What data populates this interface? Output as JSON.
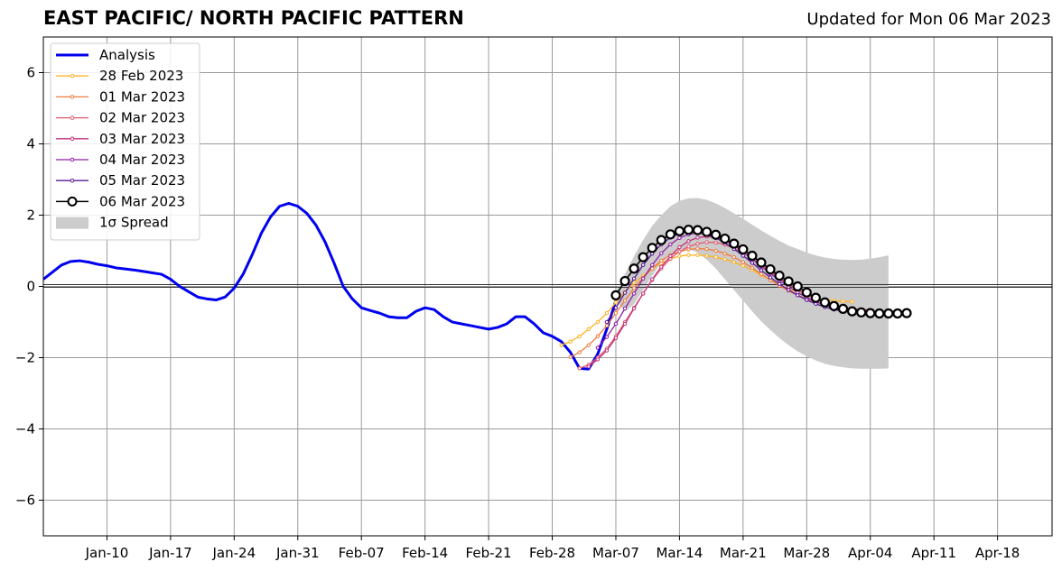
{
  "chart_data": {
    "type": "line",
    "title": "EAST PACIFIC/ NORTH PACIFIC PATTERN",
    "subtitle": "Updated for Mon 06 Mar 2023",
    "xlabel": "",
    "ylabel": "",
    "x_range": [
      "2023-01-03",
      "2023-04-24"
    ],
    "ylim": [
      -7,
      7
    ],
    "grid": true,
    "zero_line": true,
    "x_ticks": [
      "2023-01-10",
      "2023-01-17",
      "2023-01-24",
      "2023-01-31",
      "2023-02-07",
      "2023-02-14",
      "2023-02-21",
      "2023-02-28",
      "2023-03-07",
      "2023-03-14",
      "2023-03-21",
      "2023-03-28",
      "2023-04-04",
      "2023-04-11",
      "2023-04-18"
    ],
    "x_tick_labels": [
      "Jan-10",
      "Jan-17",
      "Jan-24",
      "Jan-31",
      "Feb-07",
      "Feb-14",
      "Feb-21",
      "Feb-28",
      "Mar-07",
      "Mar-14",
      "Mar-21",
      "Mar-28",
      "Apr-04",
      "Apr-11",
      "Apr-18"
    ],
    "y_ticks": [
      -6,
      -4,
      -2,
      0,
      2,
      4,
      6
    ],
    "y_tick_labels": [
      "−6",
      "−4",
      "−2",
      "0",
      "2",
      "4",
      "6"
    ],
    "legend_position": "top-left",
    "analysis": {
      "name": "Analysis",
      "color": "#0000ee",
      "start": "2023-01-03",
      "values": [
        0.2,
        0.4,
        0.6,
        0.7,
        0.72,
        0.68,
        0.62,
        0.58,
        0.52,
        0.49,
        0.46,
        0.42,
        0.38,
        0.34,
        0.2,
        0.0,
        -0.15,
        -0.3,
        -0.35,
        -0.38,
        -0.3,
        -0.05,
        0.35,
        0.9,
        1.5,
        1.95,
        2.25,
        2.33,
        2.25,
        2.05,
        1.72,
        1.25,
        0.65,
        0.0,
        -0.35,
        -0.6,
        -0.68,
        -0.75,
        -0.85,
        -0.88,
        -0.88,
        -0.7,
        -0.6,
        -0.65,
        -0.85,
        -1.0,
        -1.05,
        -1.1,
        -1.15,
        -1.2,
        -1.15,
        -1.05,
        -0.85,
        -0.85,
        -1.05,
        -1.3,
        -1.4,
        -1.55,
        -1.85,
        -2.3,
        -2.32,
        -1.9,
        -1.2,
        -0.4
      ]
    },
    "spread": {
      "name": "1σ Spread",
      "color": "#cccccc",
      "start": "2023-03-07",
      "upper": [
        -0.15,
        0.35,
        0.85,
        1.3,
        1.7,
        2.0,
        2.25,
        2.4,
        2.47,
        2.48,
        2.43,
        2.33,
        2.2,
        2.05,
        1.9,
        1.73,
        1.57,
        1.42,
        1.28,
        1.15,
        1.05,
        0.95,
        0.87,
        0.81,
        0.77,
        0.75,
        0.74,
        0.75,
        0.78,
        0.82,
        0.87
      ],
      "lower": [
        -0.4,
        -0.7,
        -0.5,
        -0.1,
        0.3,
        0.65,
        0.9,
        1.05,
        1.05,
        0.95,
        0.75,
        0.5,
        0.2,
        -0.1,
        -0.4,
        -0.7,
        -0.98,
        -1.22,
        -1.45,
        -1.65,
        -1.82,
        -1.96,
        -2.08,
        -2.17,
        -2.23,
        -2.27,
        -2.3,
        -2.31,
        -2.31,
        -2.31,
        -2.3
      ]
    },
    "series": [
      {
        "name": "28 Feb 2023",
        "color": "#fcb225",
        "start": "2023-03-01",
        "values": [
          -1.65,
          -1.55,
          -1.4,
          -1.2,
          -1.0,
          -0.75,
          -0.45,
          -0.15,
          0.1,
          0.3,
          0.5,
          0.65,
          0.77,
          0.85,
          0.88,
          0.88,
          0.86,
          0.82,
          0.76,
          0.68,
          0.58,
          0.46,
          0.32,
          0.18,
          0.05,
          -0.07,
          -0.17,
          -0.26,
          -0.33,
          -0.38,
          -0.4,
          -0.42,
          -0.43
        ]
      },
      {
        "name": "01 Mar 2023",
        "color": "#f07a3f",
        "start": "2023-03-02",
        "values": [
          -1.98,
          -1.85,
          -1.65,
          -1.4,
          -1.1,
          -0.75,
          -0.4,
          -0.05,
          0.25,
          0.5,
          0.72,
          0.88,
          0.98,
          1.04,
          1.06,
          1.05,
          1.0,
          0.92,
          0.82,
          0.68,
          0.52,
          0.35,
          0.18,
          0.02,
          -0.12,
          -0.25,
          -0.35,
          -0.43,
          -0.5,
          -0.55,
          -0.6,
          -0.63,
          -0.65
        ]
      },
      {
        "name": "02 Mar 2023",
        "color": "#e05a70",
        "start": "2023-03-03",
        "values": [
          -2.3,
          -2.2,
          -2.0,
          -1.75,
          -1.4,
          -1.0,
          -0.6,
          -0.2,
          0.18,
          0.5,
          0.78,
          0.98,
          1.12,
          1.2,
          1.24,
          1.23,
          1.17,
          1.07,
          0.94,
          0.78,
          0.6,
          0.41,
          0.22,
          0.05,
          -0.1,
          -0.23,
          -0.34,
          -0.43,
          -0.51,
          -0.58,
          -0.62,
          -0.65,
          -0.66
        ]
      },
      {
        "name": "03 Mar 2023",
        "color": "#c3317d",
        "start": "2023-03-04",
        "values": [
          -2.25,
          -2.05,
          -1.8,
          -1.45,
          -1.05,
          -0.62,
          -0.2,
          0.2,
          0.55,
          0.85,
          1.1,
          1.27,
          1.37,
          1.4,
          1.37,
          1.29,
          1.17,
          1.02,
          0.84,
          0.64,
          0.44,
          0.25,
          0.07,
          -0.09,
          -0.23,
          -0.35,
          -0.45,
          -0.53,
          -0.6,
          -0.65,
          -0.68,
          -0.7
        ]
      },
      {
        "name": "04 Mar 2023",
        "color": "#8f1ea9",
        "start": "2023-03-05",
        "values": [
          -1.72,
          -1.42,
          -1.05,
          -0.62,
          -0.2,
          0.22,
          0.6,
          0.93,
          1.18,
          1.36,
          1.46,
          1.5,
          1.48,
          1.41,
          1.3,
          1.15,
          0.97,
          0.77,
          0.56,
          0.36,
          0.17,
          -0.01,
          -0.17,
          -0.31,
          -0.43,
          -0.53,
          -0.61,
          -0.67,
          -0.71,
          -0.73
        ]
      },
      {
        "name": "05 Mar 2023",
        "color": "#5a1796",
        "start": "2023-03-06",
        "values": [
          -1.0,
          -0.6,
          -0.18,
          0.22,
          0.6,
          0.92,
          1.18,
          1.37,
          1.49,
          1.54,
          1.53,
          1.47,
          1.36,
          1.22,
          1.05,
          0.86,
          0.66,
          0.45,
          0.25,
          0.07,
          -0.1,
          -0.25,
          -0.38,
          -0.49,
          -0.58,
          -0.65,
          -0.7,
          -0.73,
          -0.75
        ]
      },
      {
        "name": "06 Mar 2023",
        "color": "#000000",
        "start": "2023-03-07",
        "values": [
          -0.25,
          0.15,
          0.5,
          0.82,
          1.08,
          1.3,
          1.46,
          1.55,
          1.59,
          1.58,
          1.53,
          1.45,
          1.34,
          1.2,
          1.04,
          0.86,
          0.67,
          0.48,
          0.3,
          0.14,
          0.0,
          -0.17,
          -0.32,
          -0.45,
          -0.55,
          -0.63,
          -0.7,
          -0.73,
          -0.75,
          -0.76,
          -0.76,
          -0.76,
          -0.75
        ]
      }
    ]
  }
}
